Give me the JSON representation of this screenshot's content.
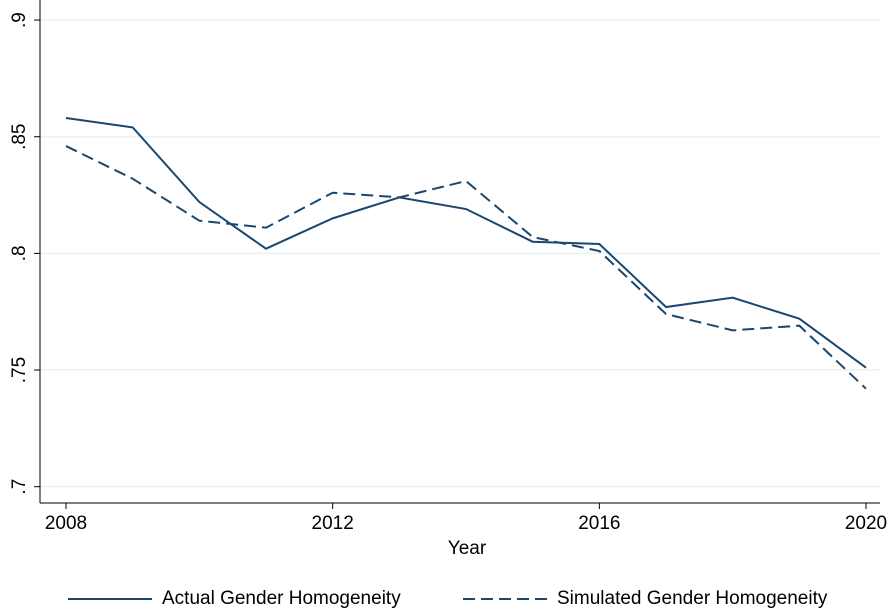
{
  "chart_data": {
    "type": "line",
    "x_label": "Year",
    "x": [
      2008,
      2009,
      2010,
      2011,
      2012,
      2013,
      2014,
      2015,
      2016,
      2017,
      2018,
      2019,
      2020
    ],
    "series": [
      {
        "name": "Actual Gender Homogeneity",
        "color": "#1a476f",
        "dash": "solid",
        "values": [
          0.858,
          0.854,
          0.822,
          0.802,
          0.815,
          0.824,
          0.819,
          0.805,
          0.804,
          0.777,
          0.781,
          0.772,
          0.751
        ]
      },
      {
        "name": "Simulated Gender Homogeneity",
        "color": "#1a476f",
        "dash": "dashed",
        "values": [
          0.846,
          0.832,
          0.814,
          0.811,
          0.826,
          0.824,
          0.831,
          0.807,
          0.801,
          0.774,
          0.767,
          0.769,
          0.742
        ]
      }
    ],
    "xlim": [
      2007.61,
      2020.21
    ],
    "xticks": [
      2008,
      2012,
      2016,
      2020
    ],
    "ylim": [
      0.693,
      0.9086
    ],
    "yticks": [
      {
        "value": 0.7,
        "label": ".7"
      },
      {
        "value": 0.75,
        "label": ".75"
      },
      {
        "value": 0.8,
        "label": ".8"
      },
      {
        "value": 0.85,
        "label": ".85"
      },
      {
        "value": 0.9,
        "label": ".9"
      }
    ],
    "grid": true
  }
}
